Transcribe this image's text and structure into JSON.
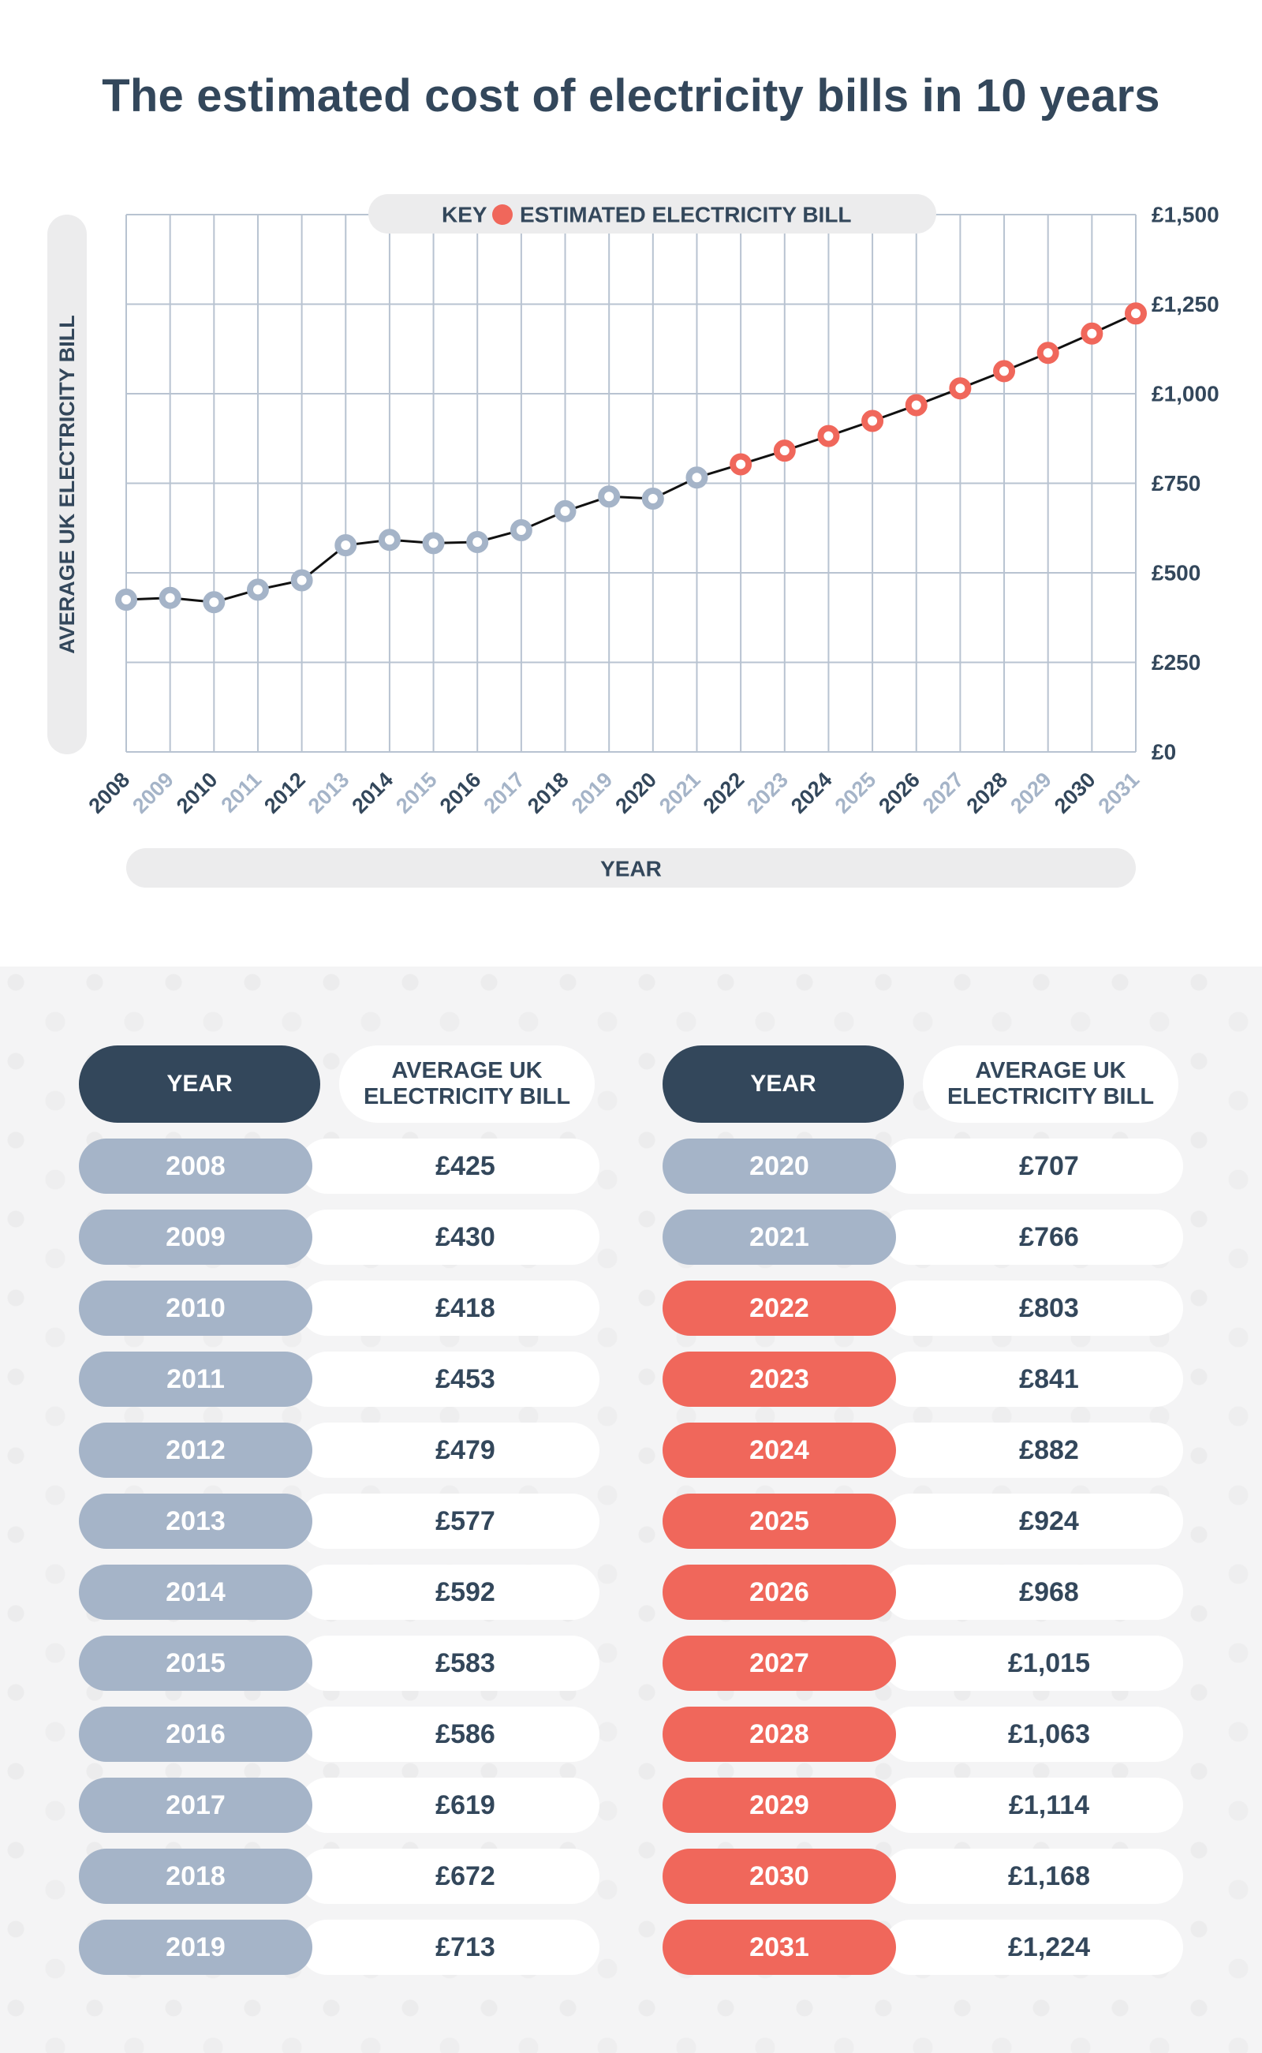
{
  "title": "The estimated cost of electricity bills in 10 years",
  "colors": {
    "dark": "#33475b",
    "historical": "#a5b4c8",
    "estimated": "#f0675b",
    "grid": "#b8c3d1",
    "pill": "#ececed"
  },
  "chart_data": {
    "type": "line",
    "title": "The estimated cost of electricity bills in 10 years",
    "xlabel": "YEAR",
    "ylabel": "AVERAGE UK ELECTRICITY BILL",
    "legend": {
      "key_label": "KEY",
      "series_label": "ESTIMATED ELECTRICITY BILL",
      "placement": "top"
    },
    "ylim": [
      0,
      1500
    ],
    "y_ticks": [
      0,
      250,
      500,
      750,
      1000,
      1250,
      1500
    ],
    "y_tick_labels": [
      "£0",
      "£250",
      "£500",
      "£750",
      "£1,000",
      "£1,250",
      "£1,500"
    ],
    "grid": true,
    "x": [
      "2008",
      "2009",
      "2010",
      "2011",
      "2012",
      "2013",
      "2014",
      "2015",
      "2016",
      "2017",
      "2018",
      "2019",
      "2020",
      "2021",
      "2022",
      "2023",
      "2024",
      "2025",
      "2026",
      "2027",
      "2028",
      "2029",
      "2030",
      "2031"
    ],
    "values": [
      425,
      430,
      418,
      453,
      479,
      577,
      592,
      583,
      586,
      619,
      672,
      713,
      707,
      766,
      803,
      841,
      882,
      924,
      968,
      1015,
      1063,
      1114,
      1168,
      1224
    ],
    "estimated_from": "2022"
  },
  "table": {
    "header_year": "YEAR",
    "header_bill_line1": "AVERAGE UK",
    "header_bill_line2": "ELECTRICITY BILL",
    "left": [
      {
        "year": "2008",
        "bill": "£425",
        "estimated": false
      },
      {
        "year": "2009",
        "bill": "£430",
        "estimated": false
      },
      {
        "year": "2010",
        "bill": "£418",
        "estimated": false
      },
      {
        "year": "2011",
        "bill": "£453",
        "estimated": false
      },
      {
        "year": "2012",
        "bill": "£479",
        "estimated": false
      },
      {
        "year": "2013",
        "bill": "£577",
        "estimated": false
      },
      {
        "year": "2014",
        "bill": "£592",
        "estimated": false
      },
      {
        "year": "2015",
        "bill": "£583",
        "estimated": false
      },
      {
        "year": "2016",
        "bill": "£586",
        "estimated": false
      },
      {
        "year": "2017",
        "bill": "£619",
        "estimated": false
      },
      {
        "year": "2018",
        "bill": "£672",
        "estimated": false
      },
      {
        "year": "2019",
        "bill": "£713",
        "estimated": false
      }
    ],
    "right": [
      {
        "year": "2020",
        "bill": "£707",
        "estimated": false
      },
      {
        "year": "2021",
        "bill": "£766",
        "estimated": false
      },
      {
        "year": "2022",
        "bill": "£803",
        "estimated": true
      },
      {
        "year": "2023",
        "bill": "£841",
        "estimated": true
      },
      {
        "year": "2024",
        "bill": "£882",
        "estimated": true
      },
      {
        "year": "2025",
        "bill": "£924",
        "estimated": true
      },
      {
        "year": "2026",
        "bill": "£968",
        "estimated": true
      },
      {
        "year": "2027",
        "bill": "£1,015",
        "estimated": true
      },
      {
        "year": "2028",
        "bill": "£1,063",
        "estimated": true
      },
      {
        "year": "2029",
        "bill": "£1,114",
        "estimated": true
      },
      {
        "year": "2030",
        "bill": "£1,168",
        "estimated": true
      },
      {
        "year": "2031",
        "bill": "£1,224",
        "estimated": true
      }
    ]
  }
}
